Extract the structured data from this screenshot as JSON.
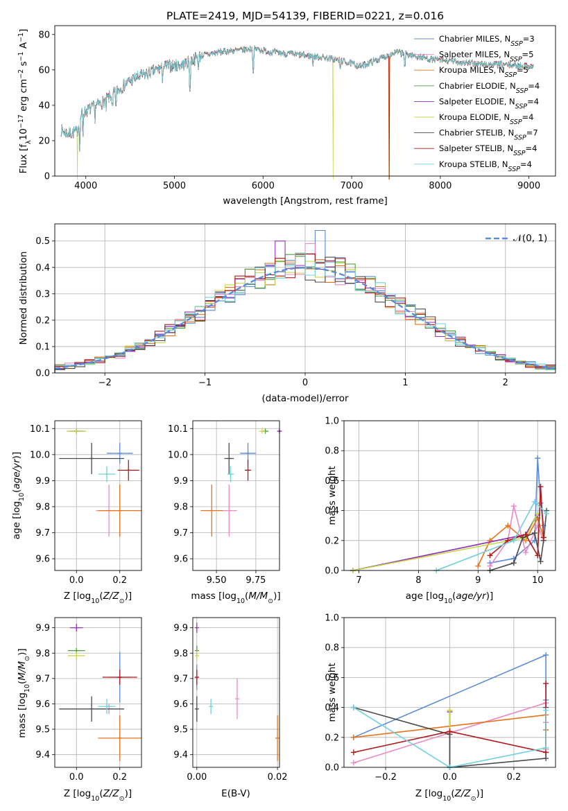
{
  "figure": {
    "title": "PLATE=2419, MJD=54139, FIBERID=0221, z=0.016"
  },
  "colors": {
    "Chabrier MILES": "#5b8bd9",
    "Salpeter MILES": "#ee88c4",
    "Kroupa MILES": "#e8711a",
    "Chabrier ELODIE": "#4e9e3c",
    "Salpeter ELODIE": "#9a2fc0",
    "Kroupa ELODIE": "#c9d64a",
    "Chabrier STELIB": "#4a4a4a",
    "Salpeter STELIB": "#b01818",
    "Kroupa STELIB": "#6fd0dc"
  },
  "chart_data": [
    {
      "id": "spectrum",
      "type": "line",
      "title": "PLATE=2419, MJD=54139, FIBERID=0221, z=0.016",
      "xlabel": "wavelength [Angstrom, rest frame]",
      "ylabel": "Flux [f_λ10^-17 erg cm^-2 s^-1 A^-1]",
      "xlim": [
        3650,
        9300
      ],
      "ylim": [
        0,
        85
      ],
      "xticks": [
        4000,
        5000,
        6000,
        7000,
        8000,
        9000
      ],
      "yticks": [
        0,
        20,
        40,
        60,
        80
      ],
      "grid": false,
      "legend_position": "top-right",
      "continuum": {
        "x": [
          3720,
          3800,
          3900,
          3950,
          4050,
          4200,
          4350,
          4500,
          4700,
          4900,
          5100,
          5300,
          5500,
          5700,
          5900,
          6100,
          6300,
          6500,
          6700,
          6900,
          7100,
          7300,
          7500,
          7700,
          7900,
          8100,
          8300,
          8500,
          8700,
          9050
        ],
        "y": [
          26,
          24,
          25,
          35,
          38,
          42,
          48,
          54,
          58,
          62,
          63,
          68,
          70,
          71,
          72,
          70,
          69,
          68,
          67,
          65,
          62,
          66,
          70,
          68,
          66,
          65,
          64,
          63,
          63,
          62
        ]
      },
      "series": [
        {
          "name": "Chabrier MILES, N_SSP=3"
        },
        {
          "name": "Salpeter MILES, N_SSP=5"
        },
        {
          "name": "Kroupa MILES, N_SSP=5"
        },
        {
          "name": "Chabrier ELODIE, N_SSP=4"
        },
        {
          "name": "Salpeter ELODIE, N_SSP=4"
        },
        {
          "name": "Kroupa ELODIE, N_SSP=4"
        },
        {
          "name": "Chabrier STELIB, N_SSP=7"
        },
        {
          "name": "Salpeter STELIB, N_SSP=4"
        },
        {
          "name": "Kroupa STELIB, N_SSP=4"
        }
      ]
    },
    {
      "id": "residuals",
      "type": "histogram",
      "xlabel": "(data-model)/error",
      "ylabel": "Normed distribution",
      "xlim": [
        -2.5,
        2.5
      ],
      "ylim": [
        0,
        0.565
      ],
      "xticks": [
        -2,
        -1,
        0,
        1,
        2
      ],
      "yticks": [
        0.0,
        0.1,
        0.2,
        0.3,
        0.4,
        0.5
      ],
      "grid": true,
      "bin_width": 0.1,
      "reference_curve": "N(0,1)",
      "legend_position": "top-right",
      "legend_label": "𝒩(0, 1)",
      "highlight_bins": [
        {
          "series": "Chabrier MILES",
          "x": 0.1,
          "value": 0.54
        },
        {
          "series": "Salpeter ELODIE",
          "x": -0.3,
          "value": 0.5
        },
        {
          "series": "Salpeter MILES",
          "x": 0.0,
          "value": 0.49
        }
      ]
    },
    {
      "id": "age_vs_Z",
      "type": "scatter_errorbars",
      "xlabel": "Z [log10(Z/Z⊙)]",
      "ylabel": "age  [log10(age/yr)]",
      "xlim": [
        -0.1,
        0.3
      ],
      "ylim": [
        9.555,
        10.13
      ],
      "xticks": [
        0.0,
        0.2
      ],
      "yticks": [
        9.6,
        9.7,
        9.8,
        9.9,
        10.0,
        10.1
      ],
      "grid": true,
      "points": [
        {
          "series": "Chabrier MILES",
          "x": 0.2,
          "xerr": 0.06,
          "y": 10.005,
          "yerr": 0.04
        },
        {
          "series": "Salpeter MILES",
          "x": 0.15,
          "xerr": 0.06,
          "y": 9.785,
          "yerr": 0.1
        },
        {
          "series": "Kroupa MILES",
          "x": 0.2,
          "xerr": 0.1,
          "y": 9.785,
          "yerr": 0.1
        },
        {
          "series": "Chabrier ELODIE",
          "x": 0.0,
          "xerr": 0.04,
          "y": 10.09,
          "yerr": 0.01
        },
        {
          "series": "Salpeter ELODIE",
          "x": 0.0,
          "xerr": 0.03,
          "y": 10.09,
          "yerr": 0.008
        },
        {
          "series": "Kroupa ELODIE",
          "x": 0.0,
          "xerr": 0.045,
          "y": 10.09,
          "yerr": 0.01
        },
        {
          "series": "Chabrier STELIB",
          "x": 0.07,
          "xerr": 0.15,
          "y": 9.985,
          "yerr": 0.06
        },
        {
          "series": "Salpeter STELIB",
          "x": 0.24,
          "xerr": 0.05,
          "y": 9.94,
          "yerr": 0.04
        },
        {
          "series": "Kroupa STELIB",
          "x": 0.14,
          "xerr": 0.04,
          "y": 9.925,
          "yerr": 0.03
        }
      ]
    },
    {
      "id": "age_vs_mass",
      "type": "scatter_errorbars",
      "xlabel": "mass [log10(M/M⊙)]",
      "ylabel": "",
      "xlim": [
        9.35,
        9.9
      ],
      "ylim": [
        9.555,
        10.13
      ],
      "xticks": [
        9.5,
        9.75
      ],
      "yticks": [
        9.6,
        9.7,
        9.8,
        9.9,
        10.0,
        10.1
      ],
      "grid": true,
      "points": [
        {
          "series": "Chabrier MILES",
          "x": 9.7,
          "xerr": 0.05,
          "y": 10.005,
          "yerr": 0.04
        },
        {
          "series": "Salpeter MILES",
          "x": 9.58,
          "xerr": 0.05,
          "y": 9.785,
          "yerr": 0.1
        },
        {
          "series": "Kroupa MILES",
          "x": 9.47,
          "xerr": 0.07,
          "y": 9.785,
          "yerr": 0.1
        },
        {
          "series": "Chabrier ELODIE",
          "x": 9.81,
          "xerr": 0.02,
          "y": 10.09,
          "yerr": 0.01
        },
        {
          "series": "Salpeter ELODIE",
          "x": 9.9,
          "xerr": 0.015,
          "y": 10.09,
          "yerr": 0.008
        },
        {
          "series": "Kroupa ELODIE",
          "x": 9.79,
          "xerr": 0.02,
          "y": 10.09,
          "yerr": 0.01
        },
        {
          "series": "Chabrier STELIB",
          "x": 9.58,
          "xerr": 0.03,
          "y": 9.985,
          "yerr": 0.06
        },
        {
          "series": "Salpeter STELIB",
          "x": 9.7,
          "xerr": 0.02,
          "y": 9.94,
          "yerr": 0.04
        },
        {
          "series": "Kroupa STELIB",
          "x": 9.59,
          "xerr": 0.02,
          "y": 9.925,
          "yerr": 0.03
        }
      ]
    },
    {
      "id": "weight_vs_age",
      "type": "line",
      "xlabel": "age  [log10(age/yr)]",
      "ylabel": "mass weight",
      "xlim": [
        6.75,
        10.3
      ],
      "ylim": [
        0,
        1.0
      ],
      "xticks": [
        7,
        8,
        9,
        10
      ],
      "yticks": [
        0.0,
        0.2,
        0.4,
        0.6,
        0.8,
        1.0
      ],
      "grid": true,
      "series": [
        {
          "name": "Chabrier MILES",
          "x": [
            9.2,
            9.6,
            9.95,
            10.0,
            10.05,
            10.1
          ],
          "y": [
            0.05,
            0.08,
            0.2,
            0.75,
            0.45,
            0.3
          ]
        },
        {
          "name": "Salpeter MILES",
          "x": [
            9.2,
            9.5,
            9.6,
            9.8,
            10.0,
            10.1
          ],
          "y": [
            0.03,
            0.2,
            0.43,
            0.12,
            0.3,
            0.2
          ]
        },
        {
          "name": "Kroupa MILES",
          "x": [
            9.0,
            9.2,
            9.5,
            9.8,
            10.0,
            10.1
          ],
          "y": [
            0.03,
            0.2,
            0.3,
            0.2,
            0.35,
            0.22
          ]
        },
        {
          "name": "Chabrier ELODIE",
          "x": [
            6.9,
            9.8,
            10.0
          ],
          "y": [
            0.0,
            0.24,
            0.38
          ]
        },
        {
          "name": "Salpeter ELODIE",
          "x": [
            6.9,
            9.8,
            10.0
          ],
          "y": [
            0.0,
            0.24,
            0.37
          ]
        },
        {
          "name": "Kroupa ELODIE",
          "x": [
            6.9,
            9.8,
            10.0
          ],
          "y": [
            0.0,
            0.22,
            0.38
          ]
        },
        {
          "name": "Chabrier STELIB",
          "x": [
            9.2,
            9.6,
            9.75,
            9.95,
            10.05,
            10.1,
            10.15
          ],
          "y": [
            0.0,
            0.05,
            0.22,
            0.25,
            0.06,
            0.2,
            0.4
          ]
        },
        {
          "name": "Salpeter STELIB",
          "x": [
            9.2,
            9.5,
            9.8,
            10.0,
            10.05,
            10.1
          ],
          "y": [
            0.1,
            0.2,
            0.24,
            0.1,
            0.56,
            0.22
          ]
        },
        {
          "name": "Kroupa STELIB",
          "x": [
            8.3,
            9.6,
            9.95,
            10.15
          ],
          "y": [
            0.0,
            0.2,
            0.46,
            0.38
          ]
        }
      ]
    },
    {
      "id": "mass_vs_Z",
      "type": "scatter_errorbars",
      "xlabel": "Z [log10(Z/Z⊙)]",
      "ylabel": "mass [log10(M/M⊙)]",
      "xlim": [
        -0.1,
        0.3
      ],
      "ylim": [
        9.35,
        9.94
      ],
      "xticks": [
        0.0,
        0.2
      ],
      "yticks": [
        9.4,
        9.5,
        9.6,
        9.7,
        9.8,
        9.9
      ],
      "grid": true,
      "points": [
        {
          "series": "Chabrier MILES",
          "x": 0.2,
          "xerr": 0.05,
          "y": 9.705,
          "yerr": 0.1
        },
        {
          "series": "Salpeter MILES",
          "x": 0.15,
          "xerr": 0.06,
          "y": 9.58,
          "yerr": 0.02
        },
        {
          "series": "Kroupa MILES",
          "x": 0.2,
          "xerr": 0.1,
          "y": 9.465,
          "yerr": 0.09
        },
        {
          "series": "Chabrier ELODIE",
          "x": 0.0,
          "xerr": 0.04,
          "y": 9.81,
          "yerr": 0.01
        },
        {
          "series": "Salpeter ELODIE",
          "x": 0.0,
          "xerr": 0.03,
          "y": 9.9,
          "yerr": 0.015
        },
        {
          "series": "Kroupa ELODIE",
          "x": 0.0,
          "xerr": 0.04,
          "y": 9.79,
          "yerr": 0.015
        },
        {
          "series": "Chabrier STELIB",
          "x": 0.07,
          "xerr": 0.15,
          "y": 9.58,
          "yerr": 0.05
        },
        {
          "series": "Salpeter STELIB",
          "x": 0.2,
          "xerr": 0.08,
          "y": 9.705,
          "yerr": 0.03
        },
        {
          "series": "Kroupa STELIB",
          "x": 0.14,
          "xerr": 0.04,
          "y": 9.59,
          "yerr": 0.03
        }
      ]
    },
    {
      "id": "mass_vs_ebv",
      "type": "scatter_errorbars",
      "xlabel": "E(B-V)",
      "ylabel": "",
      "xlim": [
        -0.001,
        0.0205
      ],
      "ylim": [
        9.35,
        9.94
      ],
      "xticks": [
        0.0,
        0.02
      ],
      "yticks": [
        9.4,
        9.5,
        9.6,
        9.7,
        9.8,
        9.9
      ],
      "grid": true,
      "points": [
        {
          "series": "Chabrier MILES",
          "x": 0.0,
          "y": 9.705,
          "yerr": 0.05
        },
        {
          "series": "Salpeter MILES",
          "x": 0.01,
          "y": 9.62,
          "yerr": 0.08
        },
        {
          "series": "Kroupa MILES",
          "x": 0.02,
          "y": 9.465,
          "yerr": 0.09
        },
        {
          "series": "Chabrier ELODIE",
          "x": 0.0,
          "y": 9.81,
          "yerr": 0.02
        },
        {
          "series": "Salpeter ELODIE",
          "x": 0.0,
          "y": 9.9,
          "yerr": 0.02
        },
        {
          "series": "Kroupa ELODIE",
          "x": 0.0,
          "y": 9.79,
          "yerr": 0.02
        },
        {
          "series": "Chabrier STELIB",
          "x": 0.0,
          "y": 9.58,
          "yerr": 0.05
        },
        {
          "series": "Salpeter STELIB",
          "x": 0.0,
          "y": 9.705,
          "yerr": 0.03
        },
        {
          "series": "Kroupa STELIB",
          "x": 0.0035,
          "y": 9.59,
          "yerr": 0.03
        }
      ]
    },
    {
      "id": "weight_vs_Z",
      "type": "line",
      "xlabel": "Z [log10(Z/Z⊙)]",
      "ylabel": "mass weight",
      "xlim": [
        -0.33,
        0.33
      ],
      "ylim": [
        0,
        1.0
      ],
      "xticks": [
        -0.2,
        0.0,
        0.2
      ],
      "yticks": [
        0.0,
        0.2,
        0.4,
        0.6,
        0.8,
        1.0
      ],
      "grid": true,
      "series": [
        {
          "name": "Chabrier MILES",
          "x": [
            -0.3,
            0.3,
            0.3,
            0.3
          ],
          "y": [
            0.2,
            0.75,
            0.45,
            0.3
          ]
        },
        {
          "name": "Salpeter MILES",
          "x": [
            -0.3,
            0.3,
            0.3,
            0.3
          ],
          "y": [
            0.03,
            0.43,
            0.3,
            0.12
          ]
        },
        {
          "name": "Kroupa MILES",
          "x": [
            -0.3,
            0.3,
            0.3,
            0.3
          ],
          "y": [
            0.2,
            0.35,
            0.25,
            0.1
          ]
        },
        {
          "name": "Chabrier ELODIE",
          "x": [
            0.0,
            0.0,
            0.0
          ],
          "y": [
            0.38,
            0.24,
            0.0
          ]
        },
        {
          "name": "Salpeter ELODIE",
          "x": [
            0.0,
            0.0,
            0.0
          ],
          "y": [
            0.37,
            0.24,
            0.0
          ]
        },
        {
          "name": "Kroupa ELODIE",
          "x": [
            0.0,
            0.0,
            0.0
          ],
          "y": [
            0.38,
            0.22,
            0.0
          ]
        },
        {
          "name": "Chabrier STELIB",
          "x": [
            -0.3,
            0.0,
            0.0,
            0.3,
            0.3
          ],
          "y": [
            0.4,
            0.22,
            0.0,
            0.06,
            0.4
          ]
        },
        {
          "name": "Salpeter STELIB",
          "x": [
            -0.3,
            0.0,
            0.3,
            0.3
          ],
          "y": [
            0.1,
            0.24,
            0.1,
            0.56
          ]
        },
        {
          "name": "Kroupa STELIB",
          "x": [
            -0.3,
            0.0,
            0.3,
            0.3
          ],
          "y": [
            0.4,
            0.0,
            0.13,
            0.38
          ]
        }
      ]
    }
  ]
}
